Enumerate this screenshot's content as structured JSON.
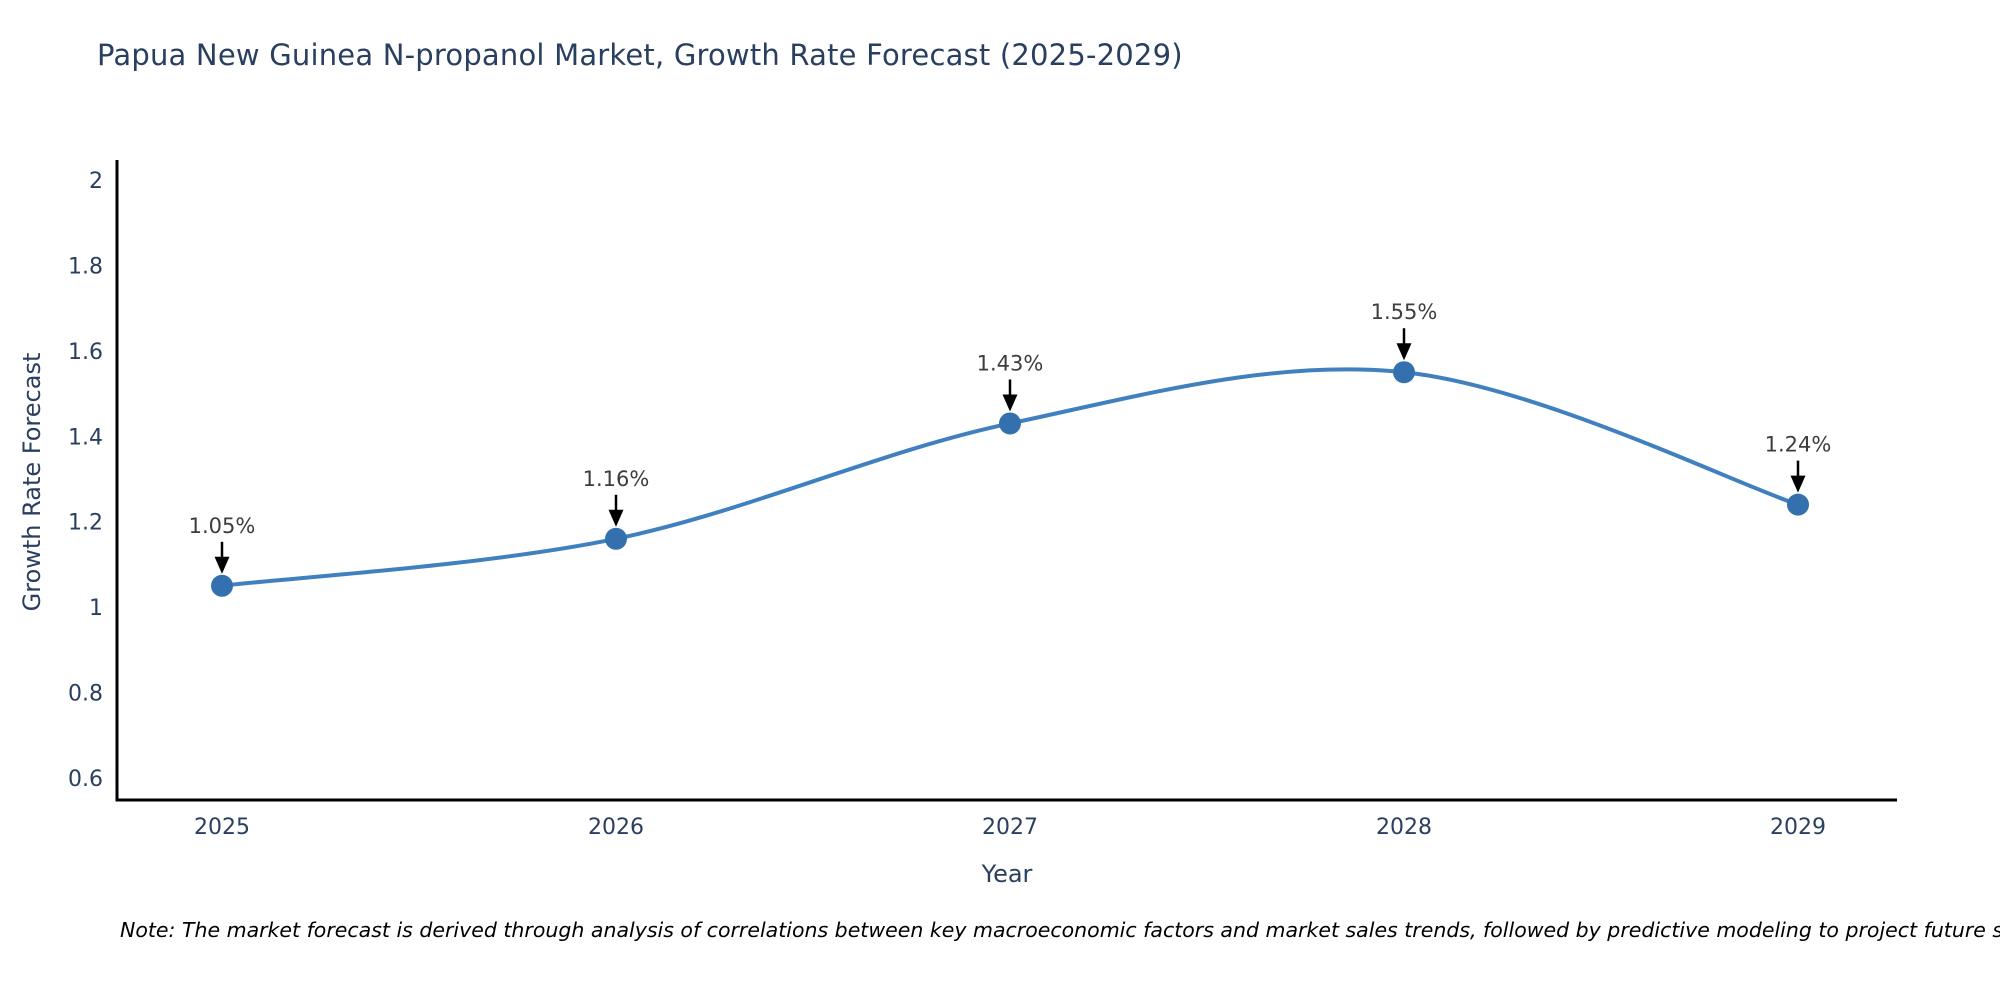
{
  "title": "Papua New Guinea N-propanol Market, Growth Rate Forecast (2025-2029)",
  "note": "Note: The market forecast is derived through analysis of correlations between key macroeconomic factors and market sales trends, followed by predictive modeling to project future sales",
  "chart_data": {
    "type": "line",
    "title": "Papua New Guinea N-propanol Market, Growth Rate Forecast (2025-2029)",
    "xlabel": "Year",
    "ylabel": "Growth Rate Forecast",
    "categories": [
      "2025",
      "2026",
      "2027",
      "2028",
      "2029"
    ],
    "values": [
      1.05,
      1.16,
      1.43,
      1.55,
      1.24
    ],
    "point_labels": [
      "1.05%",
      "1.16%",
      "1.43%",
      "1.55%",
      "1.24%"
    ],
    "y_ticks": [
      "2",
      "1.8",
      "1.6",
      "1.4",
      "1.2",
      "1",
      "0.8",
      "0.6"
    ],
    "y_tick_values": [
      2,
      1.8,
      1.6,
      1.4,
      1.2,
      1,
      0.8,
      0.6
    ],
    "ylim": [
      0.55,
      2.05
    ],
    "grid": false,
    "legend": "none",
    "line_shape": "spline",
    "annotation_arrows": true
  },
  "colors": {
    "title": "#2a3f5f",
    "tick_label": "#2a3f5f",
    "axis_title": "#2a3f5f",
    "axis_line": "#000000",
    "line": "#4080bf",
    "marker": "#3370ad",
    "annotation_text": "#3d3d3d",
    "annotation_arrow": "#000000",
    "note_text": "#000000"
  }
}
